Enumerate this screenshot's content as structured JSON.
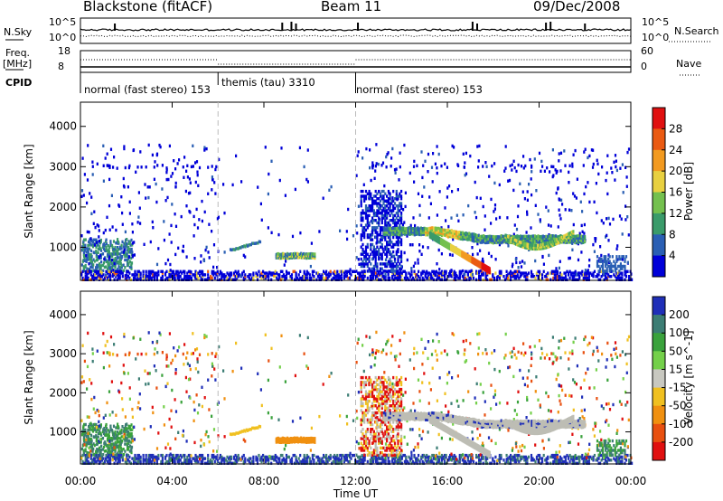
{
  "header": {
    "title": "Blackstone (fitACF)",
    "beam": "Beam 11",
    "date": "09/Dec/2008"
  },
  "noise_panel": {
    "left_label": "N.Sky",
    "left_ticks": [
      "10^5",
      "10^0"
    ],
    "right_label": "N.Search",
    "right_ticks": [
      "10^5",
      "10^0"
    ]
  },
  "freq_panel": {
    "left_label_top": "Freq.",
    "left_label_bottom": "[MHz]",
    "left_ticks": [
      "18",
      "8"
    ],
    "right_label": "Nave",
    "right_ticks": [
      "60",
      "0"
    ],
    "freq_mhz": 10.4,
    "nave_approx": 24
  },
  "cpid": {
    "label": "CPID",
    "segments": [
      {
        "text": "normal (fast stereo) 153",
        "start_h": 0,
        "end_h": 6
      },
      {
        "text": "themis (tau) 3310",
        "start_h": 6,
        "end_h": 12
      },
      {
        "text": "normal (fast stereo) 153",
        "start_h": 12,
        "end_h": 24
      }
    ]
  },
  "x_axis": {
    "label": "Time UT",
    "ticks": [
      "00:00",
      "04:00",
      "08:00",
      "12:00",
      "16:00",
      "20:00",
      "00:00"
    ],
    "range_h": [
      0,
      24
    ]
  },
  "colors": {
    "power": [
      "#0000d8",
      "#2a5fb4",
      "#3a9b6a",
      "#74c04e",
      "#e8d040",
      "#f29a20",
      "#ea5a12",
      "#e01010"
    ],
    "velocity_positive": [
      "#1f2fb8",
      "#3c7d74",
      "#3aa23c",
      "#74d04a"
    ],
    "velocity_zero": "#c8c8c0",
    "velocity_negative": [
      "#f0c020",
      "#f09010",
      "#e85010",
      "#e01010"
    ],
    "ground_scatter": "#bdbdb4",
    "dashed_marker": "#bbbbbb"
  },
  "chart_data": [
    {
      "type": "heatmap",
      "name": "power",
      "ylabel": "Slant Range [km]",
      "y_ticks": [
        "1000",
        "2000",
        "3000",
        "4000"
      ],
      "ylim": [
        180,
        4600
      ],
      "colorbar_label": "Power [dB]",
      "colorbar_ticks": [
        "4",
        "8",
        "12",
        "16",
        "20",
        "24",
        "28"
      ],
      "dashed_times_h": [
        6,
        12
      ]
    },
    {
      "type": "heatmap",
      "name": "velocity",
      "ylabel": "Slant Range [km]",
      "y_ticks": [
        "1000",
        "2000",
        "3000",
        "4000"
      ],
      "ylim": [
        180,
        4600
      ],
      "colorbar_label": "Velocity [m s^-1]",
      "colorbar_ticks": [
        "200",
        "100",
        "50",
        "15",
        "-15",
        "-50",
        "-100",
        "-200"
      ],
      "dashed_times_h": [
        6,
        12
      ]
    }
  ]
}
